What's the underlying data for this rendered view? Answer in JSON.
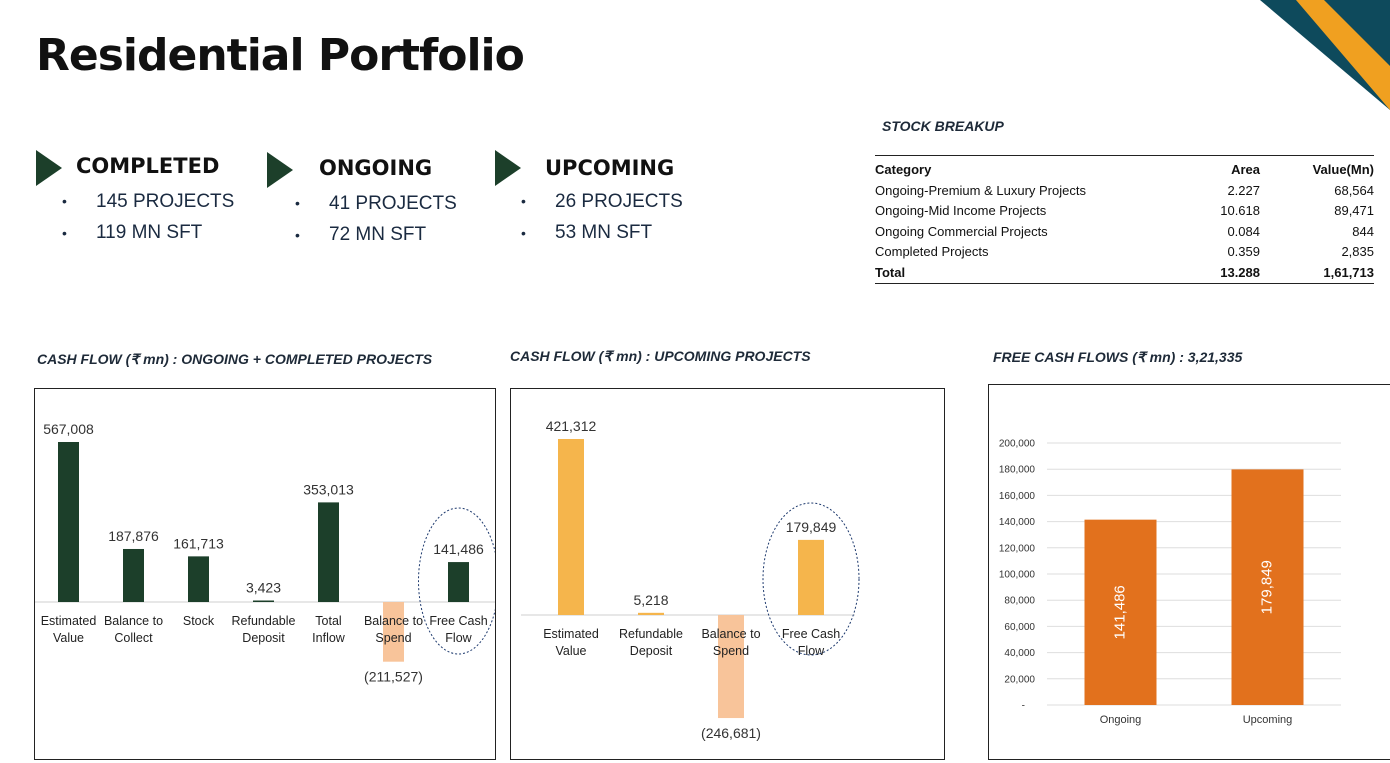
{
  "page": {
    "title": "Residential Portfolio"
  },
  "colors": {
    "dark_green": "#1c3f2a",
    "orange_light": "#f5b54c",
    "peach": "#f8c49a",
    "orange": "#e2711d",
    "navy": "#0e4a5c",
    "gold": "#f0a020"
  },
  "stats": [
    {
      "heading": "COMPLETED",
      "items": [
        "145 PROJECTS",
        "119 MN SFT"
      ]
    },
    {
      "heading": "ONGOING",
      "items": [
        "41 PROJECTS",
        "72 MN SFT"
      ]
    },
    {
      "heading": "UPCOMING",
      "items": [
        "26 PROJECTS",
        "53 MN SFT"
      ]
    }
  ],
  "stock": {
    "title": "STOCK BREAKUP",
    "headers": [
      "Category",
      "Area",
      "Value(Mn)"
    ],
    "rows": [
      [
        "Ongoing-Premium & Luxury Projects",
        "2.227",
        "68,564"
      ],
      [
        "Ongoing-Mid Income Projects",
        "10.618",
        "89,471"
      ],
      [
        "Ongoing Commercial Projects",
        "0.084",
        "844"
      ],
      [
        "Completed Projects",
        "0.359",
        "2,835"
      ]
    ],
    "total": [
      "Total",
      "13.288",
      "1,61,713"
    ]
  },
  "chart_data": [
    {
      "type": "bar",
      "title": "CASH FLOW (₹ mn) : ONGOING + COMPLETED PROJECTS",
      "categories": [
        [
          "Estimated",
          "Value"
        ],
        [
          "Balance to",
          "Collect"
        ],
        [
          "Stock"
        ],
        [
          "Refundable",
          "Deposit"
        ],
        [
          "Total",
          "Inflow"
        ],
        [
          "Balance to",
          "Spend"
        ],
        [
          "Free Cash",
          "Flow"
        ]
      ],
      "values": [
        567008,
        187876,
        161713,
        3423,
        353013,
        -211527,
        141486
      ],
      "labels": [
        "567,008",
        "187,876",
        "161,713",
        "3,423",
        "353,013",
        "(211,527)",
        "141,486"
      ],
      "highlight": "Free Cash Flow"
    },
    {
      "type": "bar",
      "title": "CASH FLOW (₹ mn) : UPCOMING  PROJECTS",
      "categories": [
        [
          "Estimated",
          "Value"
        ],
        [
          "Refundable",
          "Deposit"
        ],
        [
          "Balance to",
          "Spend"
        ],
        [
          "Free Cash",
          "Flow"
        ]
      ],
      "values": [
        421312,
        5218,
        -246681,
        179849
      ],
      "labels": [
        "421,312",
        "5,218",
        "(246,681)",
        "179,849"
      ],
      "highlight": "Free Cash Flow"
    },
    {
      "type": "bar",
      "title": "FREE CASH FLOWS (₹ mn) : 3,21,335",
      "categories": [
        "Ongoing",
        "Upcoming"
      ],
      "values": [
        141486,
        179849
      ],
      "labels": [
        "141,486",
        "179,849"
      ],
      "ylim": [
        0,
        200000
      ],
      "yticks": [
        "-",
        "20,000",
        "40,000",
        "60,000",
        "80,000",
        "100,000",
        "120,000",
        "140,000",
        "160,000",
        "180,000",
        "200,000"
      ],
      "grid": true
    }
  ]
}
